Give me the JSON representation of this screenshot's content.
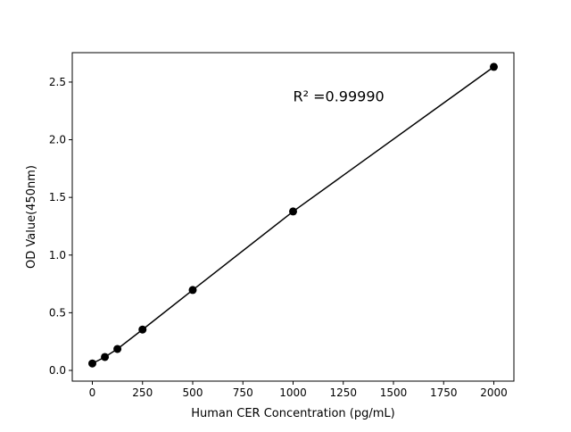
{
  "chart_data": {
    "type": "line",
    "title": "",
    "xlabel": "Human CER Concentration (pg/mL)",
    "ylabel": "OD Value(450nm)",
    "xlim": [
      -100,
      2100
    ],
    "ylim": [
      -0.093,
      2.755
    ],
    "xticks": [
      0,
      250,
      500,
      750,
      1000,
      1250,
      1500,
      1750,
      2000
    ],
    "yticks": [
      0.0,
      0.5,
      1.0,
      1.5,
      2.0,
      2.5
    ],
    "xtick_labels": [
      "0",
      "250",
      "500",
      "750",
      "1000",
      "1250",
      "1500",
      "1750",
      "2000"
    ],
    "ytick_labels": [
      "0.0",
      "0.5",
      "1.0",
      "1.5",
      "2.0",
      "2.5"
    ],
    "grid": false,
    "series": [
      {
        "x": [
          0,
          62.5,
          125,
          250,
          500,
          1000,
          2000
        ],
        "y": [
          0.06,
          0.116,
          0.186,
          0.354,
          0.697,
          1.378,
          2.632
        ],
        "color": "#000000",
        "marker": "circle"
      }
    ],
    "annotations": [
      {
        "text": "R² =0.99990",
        "x": 1000,
        "y": 2.38
      }
    ]
  }
}
